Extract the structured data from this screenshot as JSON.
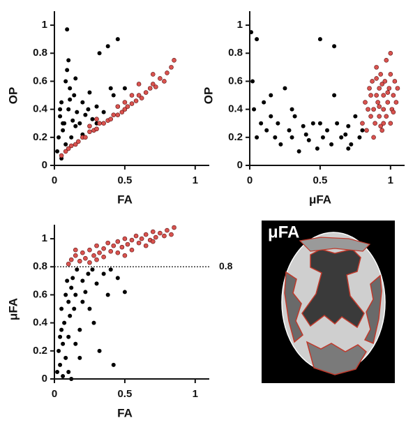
{
  "chart_data": [
    {
      "type": "scatter",
      "xlabel": "FA",
      "ylabel": "OP",
      "xlim": [
        0,
        1.1
      ],
      "ylim": [
        0,
        1.1
      ],
      "xticks": [
        0,
        0.5,
        1
      ],
      "yticks": [
        0,
        0.2,
        0.4,
        0.6,
        0.8,
        1
      ],
      "series": [
        {
          "color": "#000000",
          "x": [
            0.02,
            0.03,
            0.04,
            0.05,
            0.05,
            0.06,
            0.07,
            0.08,
            0.08,
            0.09,
            0.1,
            0.1,
            0.11,
            0.12,
            0.13,
            0.14,
            0.15,
            0.16,
            0.18,
            0.2,
            0.22,
            0.24,
            0.25,
            0.27,
            0.3,
            0.32,
            0.35,
            0.38,
            0.4,
            0.45,
            0.1,
            0.09,
            0.11,
            0.06,
            0.2,
            0.3,
            0.42,
            0.5,
            0.15,
            0.04
          ],
          "values": [
            0.1,
            0.2,
            0.35,
            0.05,
            0.45,
            0.25,
            0.3,
            0.6,
            0.15,
            0.97,
            0.75,
            0.4,
            0.55,
            0.2,
            0.32,
            0.5,
            0.28,
            0.38,
            0.3,
            0.45,
            0.36,
            0.4,
            0.52,
            0.33,
            0.42,
            0.8,
            0.38,
            0.85,
            0.55,
            0.9,
            0.12,
            0.68,
            0.47,
            0.3,
            0.22,
            0.3,
            0.5,
            0.55,
            0.62,
            0.4
          ]
        },
        {
          "color": "#d9534f",
          "x": [
            0.05,
            0.08,
            0.1,
            0.12,
            0.15,
            0.17,
            0.2,
            0.22,
            0.25,
            0.28,
            0.3,
            0.32,
            0.35,
            0.38,
            0.4,
            0.42,
            0.45,
            0.48,
            0.5,
            0.52,
            0.55,
            0.58,
            0.6,
            0.62,
            0.65,
            0.68,
            0.7,
            0.72,
            0.75,
            0.78,
            0.8,
            0.83,
            0.85,
            0.3,
            0.45,
            0.55,
            0.6,
            0.7,
            0.25,
            0.5
          ],
          "values": [
            0.07,
            0.1,
            0.12,
            0.14,
            0.15,
            0.17,
            0.2,
            0.2,
            0.24,
            0.25,
            0.26,
            0.3,
            0.3,
            0.32,
            0.33,
            0.36,
            0.36,
            0.38,
            0.4,
            0.42,
            0.44,
            0.46,
            0.5,
            0.48,
            0.52,
            0.55,
            0.58,
            0.56,
            0.62,
            0.6,
            0.66,
            0.7,
            0.75,
            0.33,
            0.42,
            0.5,
            0.58,
            0.65,
            0.28,
            0.45
          ]
        }
      ]
    },
    {
      "type": "scatter",
      "xlabel": "μFA",
      "ylabel": "OP",
      "xlim": [
        0,
        1.1
      ],
      "ylim": [
        0,
        1.1
      ],
      "xticks": [
        0,
        0.5,
        1
      ],
      "yticks": [
        0,
        0.2,
        0.4,
        0.6,
        0.8,
        1
      ],
      "series": [
        {
          "color": "#000000",
          "x": [
            0.01,
            0.02,
            0.03,
            0.05,
            0.05,
            0.08,
            0.1,
            0.12,
            0.15,
            0.18,
            0.2,
            0.22,
            0.25,
            0.28,
            0.3,
            0.32,
            0.35,
            0.38,
            0.4,
            0.42,
            0.45,
            0.48,
            0.5,
            0.52,
            0.55,
            0.58,
            0.6,
            0.62,
            0.65,
            0.68,
            0.7,
            0.72,
            0.75,
            0.78,
            0.8,
            0.3,
            0.5,
            0.6,
            0.7,
            0.15
          ],
          "values": [
            0.95,
            0.6,
            0.4,
            0.2,
            0.9,
            0.3,
            0.45,
            0.25,
            0.5,
            0.2,
            0.3,
            0.15,
            0.55,
            0.25,
            0.2,
            0.35,
            0.1,
            0.28,
            0.22,
            0.18,
            0.3,
            0.12,
            0.9,
            0.2,
            0.25,
            0.15,
            0.85,
            0.3,
            0.2,
            0.22,
            0.28,
            0.15,
            0.35,
            0.2,
            0.25,
            0.4,
            0.3,
            0.5,
            0.12,
            0.35
          ]
        },
        {
          "color": "#d9534f",
          "x": [
            0.8,
            0.82,
            0.83,
            0.85,
            0.86,
            0.87,
            0.88,
            0.89,
            0.9,
            0.9,
            0.91,
            0.92,
            0.92,
            0.93,
            0.94,
            0.95,
            0.95,
            0.96,
            0.97,
            0.98,
            0.99,
            1.0,
            1.0,
            1.01,
            1.02,
            1.03,
            1.04,
            1.05,
            0.88,
            0.93,
            0.97,
            0.84,
            0.9,
            0.95,
            1.0,
            0.86,
            0.92,
            0.98,
            1.02,
            0.94
          ],
          "values": [
            0.3,
            0.45,
            0.25,
            0.55,
            0.35,
            0.6,
            0.4,
            0.3,
            0.5,
            0.7,
            0.45,
            0.35,
            0.55,
            0.65,
            0.25,
            0.4,
            0.5,
            0.6,
            0.35,
            0.45,
            0.55,
            0.3,
            0.65,
            0.4,
            0.5,
            0.6,
            0.45,
            0.55,
            0.2,
            0.28,
            0.75,
            0.4,
            0.62,
            0.3,
            0.8,
            0.5,
            0.42,
            0.52,
            0.38,
            0.58
          ]
        }
      ]
    },
    {
      "type": "scatter",
      "xlabel": "FA",
      "ylabel": "μFA",
      "xlim": [
        0,
        1.1
      ],
      "ylim": [
        0,
        1.1
      ],
      "xticks": [
        0,
        0.5,
        1
      ],
      "yticks": [
        0,
        0.2,
        0.4,
        0.6,
        0.8,
        1
      ],
      "hline": 0.8,
      "series": [
        {
          "color": "#000000",
          "x": [
            0.02,
            0.03,
            0.04,
            0.05,
            0.05,
            0.06,
            0.07,
            0.08,
            0.08,
            0.09,
            0.1,
            0.1,
            0.11,
            0.12,
            0.13,
            0.14,
            0.15,
            0.16,
            0.18,
            0.2,
            0.22,
            0.24,
            0.25,
            0.27,
            0.3,
            0.32,
            0.35,
            0.38,
            0.4,
            0.42,
            0.1,
            0.06,
            0.12,
            0.2,
            0.15,
            0.28,
            0.5,
            0.45,
            0.04,
            0.18
          ],
          "values": [
            0.05,
            0.2,
            0.1,
            0.35,
            0.5,
            0.25,
            0.4,
            0.6,
            0.15,
            0.7,
            0.3,
            0.55,
            0.45,
            0.65,
            0.72,
            0.5,
            0.6,
            0.78,
            0.35,
            0.7,
            0.62,
            0.75,
            0.5,
            0.78,
            0.68,
            0.2,
            0.75,
            0.6,
            0.78,
            0.1,
            0.05,
            0.02,
            0.0,
            0.55,
            0.25,
            0.4,
            0.62,
            0.72,
            0.3,
            0.15
          ]
        },
        {
          "color": "#d9534f",
          "x": [
            0.1,
            0.12,
            0.15,
            0.18,
            0.2,
            0.22,
            0.25,
            0.28,
            0.3,
            0.32,
            0.35,
            0.38,
            0.4,
            0.42,
            0.45,
            0.48,
            0.5,
            0.52,
            0.55,
            0.58,
            0.6,
            0.62,
            0.65,
            0.68,
            0.7,
            0.72,
            0.75,
            0.78,
            0.8,
            0.83,
            0.85,
            0.25,
            0.35,
            0.45,
            0.55,
            0.65,
            0.3,
            0.5,
            0.7,
            0.15
          ],
          "values": [
            0.82,
            0.85,
            0.88,
            0.84,
            0.9,
            0.86,
            0.92,
            0.88,
            0.95,
            0.9,
            0.93,
            0.97,
            0.91,
            0.95,
            0.98,
            0.94,
            1.0,
            0.96,
            0.99,
            1.02,
            0.97,
            1.0,
            1.03,
            0.99,
            1.05,
            1.01,
            1.04,
            1.02,
            1.06,
            1.03,
            1.08,
            0.83,
            0.87,
            0.9,
            0.92,
            0.95,
            0.85,
            0.88,
            0.98,
            0.92
          ]
        }
      ]
    }
  ],
  "image": {
    "label": "μFA"
  }
}
